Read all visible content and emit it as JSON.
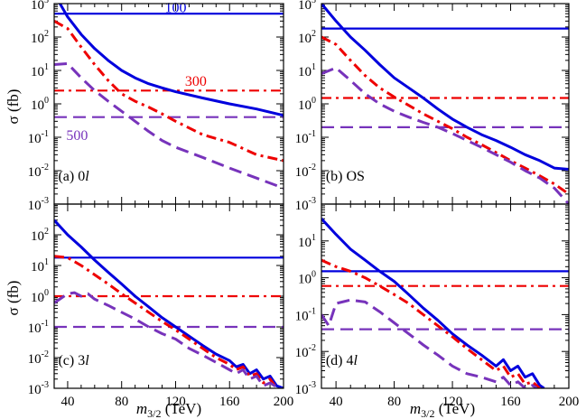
{
  "figure": {
    "ylabel": "σ (fb)",
    "xlabel_m": "m",
    "xlabel_sub": "3/2",
    "xlabel_unit": " (TeV)"
  },
  "colors": {
    "blue": "#0000dd",
    "red": "#ee0000",
    "purple": "#7733bb"
  },
  "chart_data": [
    {
      "type": "line",
      "panel": "top-left",
      "title": "(a) 0l",
      "label_prefix": "(a) 0",
      "label_italic": "l",
      "xlim": [
        30,
        200
      ],
      "ylim_exp": [
        -3,
        3
      ],
      "x_ticks": [
        40,
        80,
        120,
        160,
        200
      ],
      "show_x_tick_labels": false,
      "show_y_tick_labels": true,
      "y_tick_exps": [
        -3,
        -2,
        -1,
        0,
        1,
        2,
        3
      ],
      "annotations": [
        {
          "text": "100",
          "color": "blue",
          "x": 120,
          "y": 800
        },
        {
          "text": "300",
          "color": "red",
          "x": 135,
          "y": 5
        },
        {
          "text": "500",
          "color": "purple",
          "x": 47,
          "y": 0.12
        }
      ],
      "series": [
        {
          "name": "100 bkg",
          "color": "blue",
          "style": "solid",
          "x": [
            30,
            200
          ],
          "y": [
            500,
            500
          ]
        },
        {
          "name": "300 bkg",
          "color": "red",
          "style": "dashdot",
          "x": [
            30,
            200
          ],
          "y": [
            2.5,
            2.5
          ]
        },
        {
          "name": "500 bkg",
          "color": "purple",
          "style": "dashed",
          "x": [
            30,
            200
          ],
          "y": [
            0.4,
            0.4
          ]
        },
        {
          "name": "100 signal",
          "color": "blue",
          "style": "solid",
          "x": [
            30,
            40,
            50,
            60,
            70,
            80,
            90,
            100,
            110,
            120,
            140,
            160,
            180,
            200
          ],
          "y": [
            2000,
            400,
            120,
            45,
            20,
            10,
            6,
            4,
            3,
            2.3,
            1.5,
            1.0,
            0.7,
            0.45
          ]
        },
        {
          "name": "300 signal",
          "color": "red",
          "style": "dashdot",
          "x": [
            30,
            40,
            50,
            60,
            70,
            80,
            90,
            100,
            110,
            120,
            140,
            160,
            180,
            200
          ],
          "y": [
            300,
            180,
            50,
            15,
            5,
            2,
            1.2,
            0.8,
            0.5,
            0.3,
            0.12,
            0.07,
            0.03,
            0.02
          ]
        },
        {
          "name": "500 signal",
          "color": "purple",
          "style": "dashed",
          "x": [
            30,
            40,
            50,
            60,
            70,
            80,
            90,
            100,
            110,
            120,
            140,
            160,
            180,
            200
          ],
          "y": [
            15,
            16,
            6,
            2.5,
            1.2,
            0.6,
            0.3,
            0.15,
            0.08,
            0.05,
            0.025,
            0.012,
            0.006,
            0.003
          ]
        }
      ]
    },
    {
      "type": "line",
      "panel": "top-right",
      "title": "(b) OS",
      "label_prefix": "(b) OS",
      "label_italic": "",
      "xlim": [
        30,
        200
      ],
      "ylim_exp": [
        -3,
        3
      ],
      "x_ticks": [
        40,
        80,
        120,
        160,
        200
      ],
      "show_x_tick_labels": false,
      "show_y_tick_labels": true,
      "y_tick_exps": [
        -3,
        -2,
        -1,
        0,
        1,
        2,
        3
      ],
      "annotations": [],
      "series": [
        {
          "name": "100 bkg",
          "color": "blue",
          "style": "solid",
          "x": [
            30,
            200
          ],
          "y": [
            180,
            180
          ]
        },
        {
          "name": "300 bkg",
          "color": "red",
          "style": "dashdot",
          "x": [
            30,
            200
          ],
          "y": [
            1.5,
            1.5
          ]
        },
        {
          "name": "500 bkg",
          "color": "purple",
          "style": "dashed",
          "x": [
            30,
            200
          ],
          "y": [
            0.2,
            0.2
          ]
        },
        {
          "name": "100 signal",
          "color": "blue",
          "style": "solid",
          "x": [
            30,
            40,
            50,
            60,
            70,
            80,
            90,
            100,
            110,
            120,
            130,
            140,
            150,
            160,
            170,
            180,
            190,
            200
          ],
          "y": [
            1000,
            300,
            100,
            40,
            15,
            6,
            3,
            1.5,
            0.7,
            0.35,
            0.2,
            0.12,
            0.08,
            0.05,
            0.03,
            0.02,
            0.012,
            0.011
          ]
        },
        {
          "name": "300 signal",
          "color": "red",
          "style": "dashdot",
          "x": [
            30,
            40,
            50,
            60,
            70,
            80,
            90,
            100,
            110,
            120,
            130,
            140,
            150,
            160,
            170,
            180,
            190,
            200
          ],
          "y": [
            100,
            60,
            20,
            7,
            3,
            1.6,
            0.9,
            0.5,
            0.3,
            0.18,
            0.1,
            0.06,
            0.035,
            0.02,
            0.012,
            0.007,
            0.004,
            0.002
          ]
        },
        {
          "name": "500 signal",
          "color": "purple",
          "style": "dashed",
          "x": [
            30,
            40,
            50,
            60,
            70,
            80,
            90,
            100,
            110,
            120,
            130,
            140,
            150,
            160,
            170,
            180,
            190,
            200
          ],
          "y": [
            8,
            12,
            5,
            2,
            1,
            0.6,
            0.4,
            0.28,
            0.2,
            0.13,
            0.08,
            0.05,
            0.03,
            0.018,
            0.01,
            0.006,
            0.003,
            0.001
          ]
        }
      ]
    },
    {
      "type": "line",
      "panel": "bottom-left",
      "title": "(c) 3l",
      "label_prefix": "(c) 3",
      "label_italic": "l",
      "xlim": [
        30,
        200
      ],
      "ylim_exp": [
        -3,
        3
      ],
      "x_ticks": [
        40,
        80,
        120,
        160,
        200
      ],
      "show_x_tick_labels": true,
      "show_y_tick_labels": true,
      "y_tick_exps": [
        -3,
        -2,
        -1,
        0,
        1,
        2
      ],
      "annotations": [],
      "series": [
        {
          "name": "100 bkg",
          "color": "blue",
          "style": "solid",
          "x": [
            30,
            200
          ],
          "y": [
            18,
            18
          ]
        },
        {
          "name": "300 bkg",
          "color": "red",
          "style": "dashdot",
          "x": [
            30,
            200
          ],
          "y": [
            1,
            1
          ]
        },
        {
          "name": "500 bkg",
          "color": "purple",
          "style": "dashed",
          "x": [
            30,
            200
          ],
          "y": [
            0.1,
            0.1
          ]
        },
        {
          "name": "100 signal",
          "color": "blue",
          "style": "solid",
          "x": [
            30,
            40,
            50,
            60,
            70,
            80,
            90,
            100,
            110,
            120,
            130,
            140,
            150,
            160,
            165,
            170,
            175,
            180,
            185,
            190,
            195,
            200
          ],
          "y": [
            300,
            100,
            40,
            15,
            6,
            2.5,
            1,
            0.45,
            0.2,
            0.1,
            0.05,
            0.025,
            0.013,
            0.008,
            0.005,
            0.006,
            0.003,
            0.004,
            0.002,
            0.0025,
            0.0012,
            0.001
          ]
        },
        {
          "name": "300 signal",
          "color": "red",
          "style": "dashdot",
          "x": [
            30,
            40,
            50,
            60,
            70,
            80,
            90,
            100,
            110,
            120,
            130,
            140,
            150,
            160,
            165,
            170,
            175,
            180,
            185,
            190,
            195,
            200
          ],
          "y": [
            20,
            18,
            10,
            5,
            2.5,
            1.2,
            0.6,
            0.3,
            0.15,
            0.08,
            0.04,
            0.02,
            0.01,
            0.006,
            0.004,
            0.005,
            0.0025,
            0.003,
            0.0015,
            0.002,
            0.001,
            0.0008
          ]
        },
        {
          "name": "500 signal",
          "color": "purple",
          "style": "dashed",
          "x": [
            30,
            40,
            45,
            50,
            55,
            60,
            70,
            80,
            90,
            100,
            110,
            120,
            130,
            140,
            150,
            160,
            165,
            170,
            175,
            180,
            185,
            190,
            200
          ],
          "y": [
            0.6,
            1.2,
            1.3,
            1.0,
            1.2,
            0.8,
            0.5,
            0.3,
            0.18,
            0.1,
            0.06,
            0.04,
            0.02,
            0.012,
            0.007,
            0.004,
            0.003,
            0.004,
            0.002,
            0.0025,
            0.0012,
            0.0015,
            0.0008
          ]
        }
      ]
    },
    {
      "type": "line",
      "panel": "bottom-right",
      "title": "(d) 4l",
      "label_prefix": "(d) 4",
      "label_italic": "l",
      "xlim": [
        30,
        200
      ],
      "ylim_exp": [
        -3,
        2
      ],
      "x_ticks": [
        40,
        80,
        120,
        160,
        200
      ],
      "show_x_tick_labels": true,
      "show_y_tick_labels": true,
      "y_tick_exps": [
        -3,
        -2,
        -1,
        0,
        1
      ],
      "annotations": [],
      "series": [
        {
          "name": "100 bkg",
          "color": "blue",
          "style": "solid",
          "x": [
            30,
            200
          ],
          "y": [
            1.5,
            1.5
          ]
        },
        {
          "name": "300 bkg",
          "color": "red",
          "style": "dashdot",
          "x": [
            30,
            200
          ],
          "y": [
            0.6,
            0.6
          ]
        },
        {
          "name": "500 bkg",
          "color": "purple",
          "style": "dashed",
          "x": [
            30,
            200
          ],
          "y": [
            0.04,
            0.04
          ]
        },
        {
          "name": "100 signal",
          "color": "blue",
          "style": "solid",
          "x": [
            30,
            40,
            50,
            60,
            70,
            80,
            90,
            100,
            110,
            120,
            130,
            140,
            150,
            155,
            160,
            165,
            170,
            175,
            180,
            183
          ],
          "y": [
            40,
            15,
            6,
            3,
            1.5,
            0.8,
            0.35,
            0.15,
            0.07,
            0.03,
            0.015,
            0.008,
            0.004,
            0.006,
            0.003,
            0.004,
            0.002,
            0.0025,
            0.0012,
            0.001
          ]
        },
        {
          "name": "300 signal",
          "color": "red",
          "style": "dashdot",
          "x": [
            30,
            40,
            50,
            60,
            70,
            80,
            90,
            100,
            110,
            120,
            130,
            140,
            150,
            155,
            160,
            165,
            170,
            175,
            180
          ],
          "y": [
            3,
            2,
            1.5,
            1,
            0.6,
            0.35,
            0.2,
            0.1,
            0.05,
            0.025,
            0.012,
            0.006,
            0.003,
            0.004,
            0.002,
            0.0025,
            0.0013,
            0.0015,
            0.001
          ]
        },
        {
          "name": "500 signal",
          "color": "purple",
          "style": "dashed",
          "x": [
            30,
            35,
            40,
            50,
            60,
            70,
            80,
            90,
            100,
            110,
            120,
            130,
            140,
            150,
            155,
            160,
            165,
            170,
            175,
            178
          ],
          "y": [
            0.1,
            0.05,
            0.2,
            0.25,
            0.22,
            0.12,
            0.06,
            0.03,
            0.015,
            0.008,
            0.004,
            0.0025,
            0.002,
            0.0015,
            0.002,
            0.0012,
            0.0015,
            0.001,
            0.0012,
            0.001
          ]
        }
      ]
    }
  ]
}
